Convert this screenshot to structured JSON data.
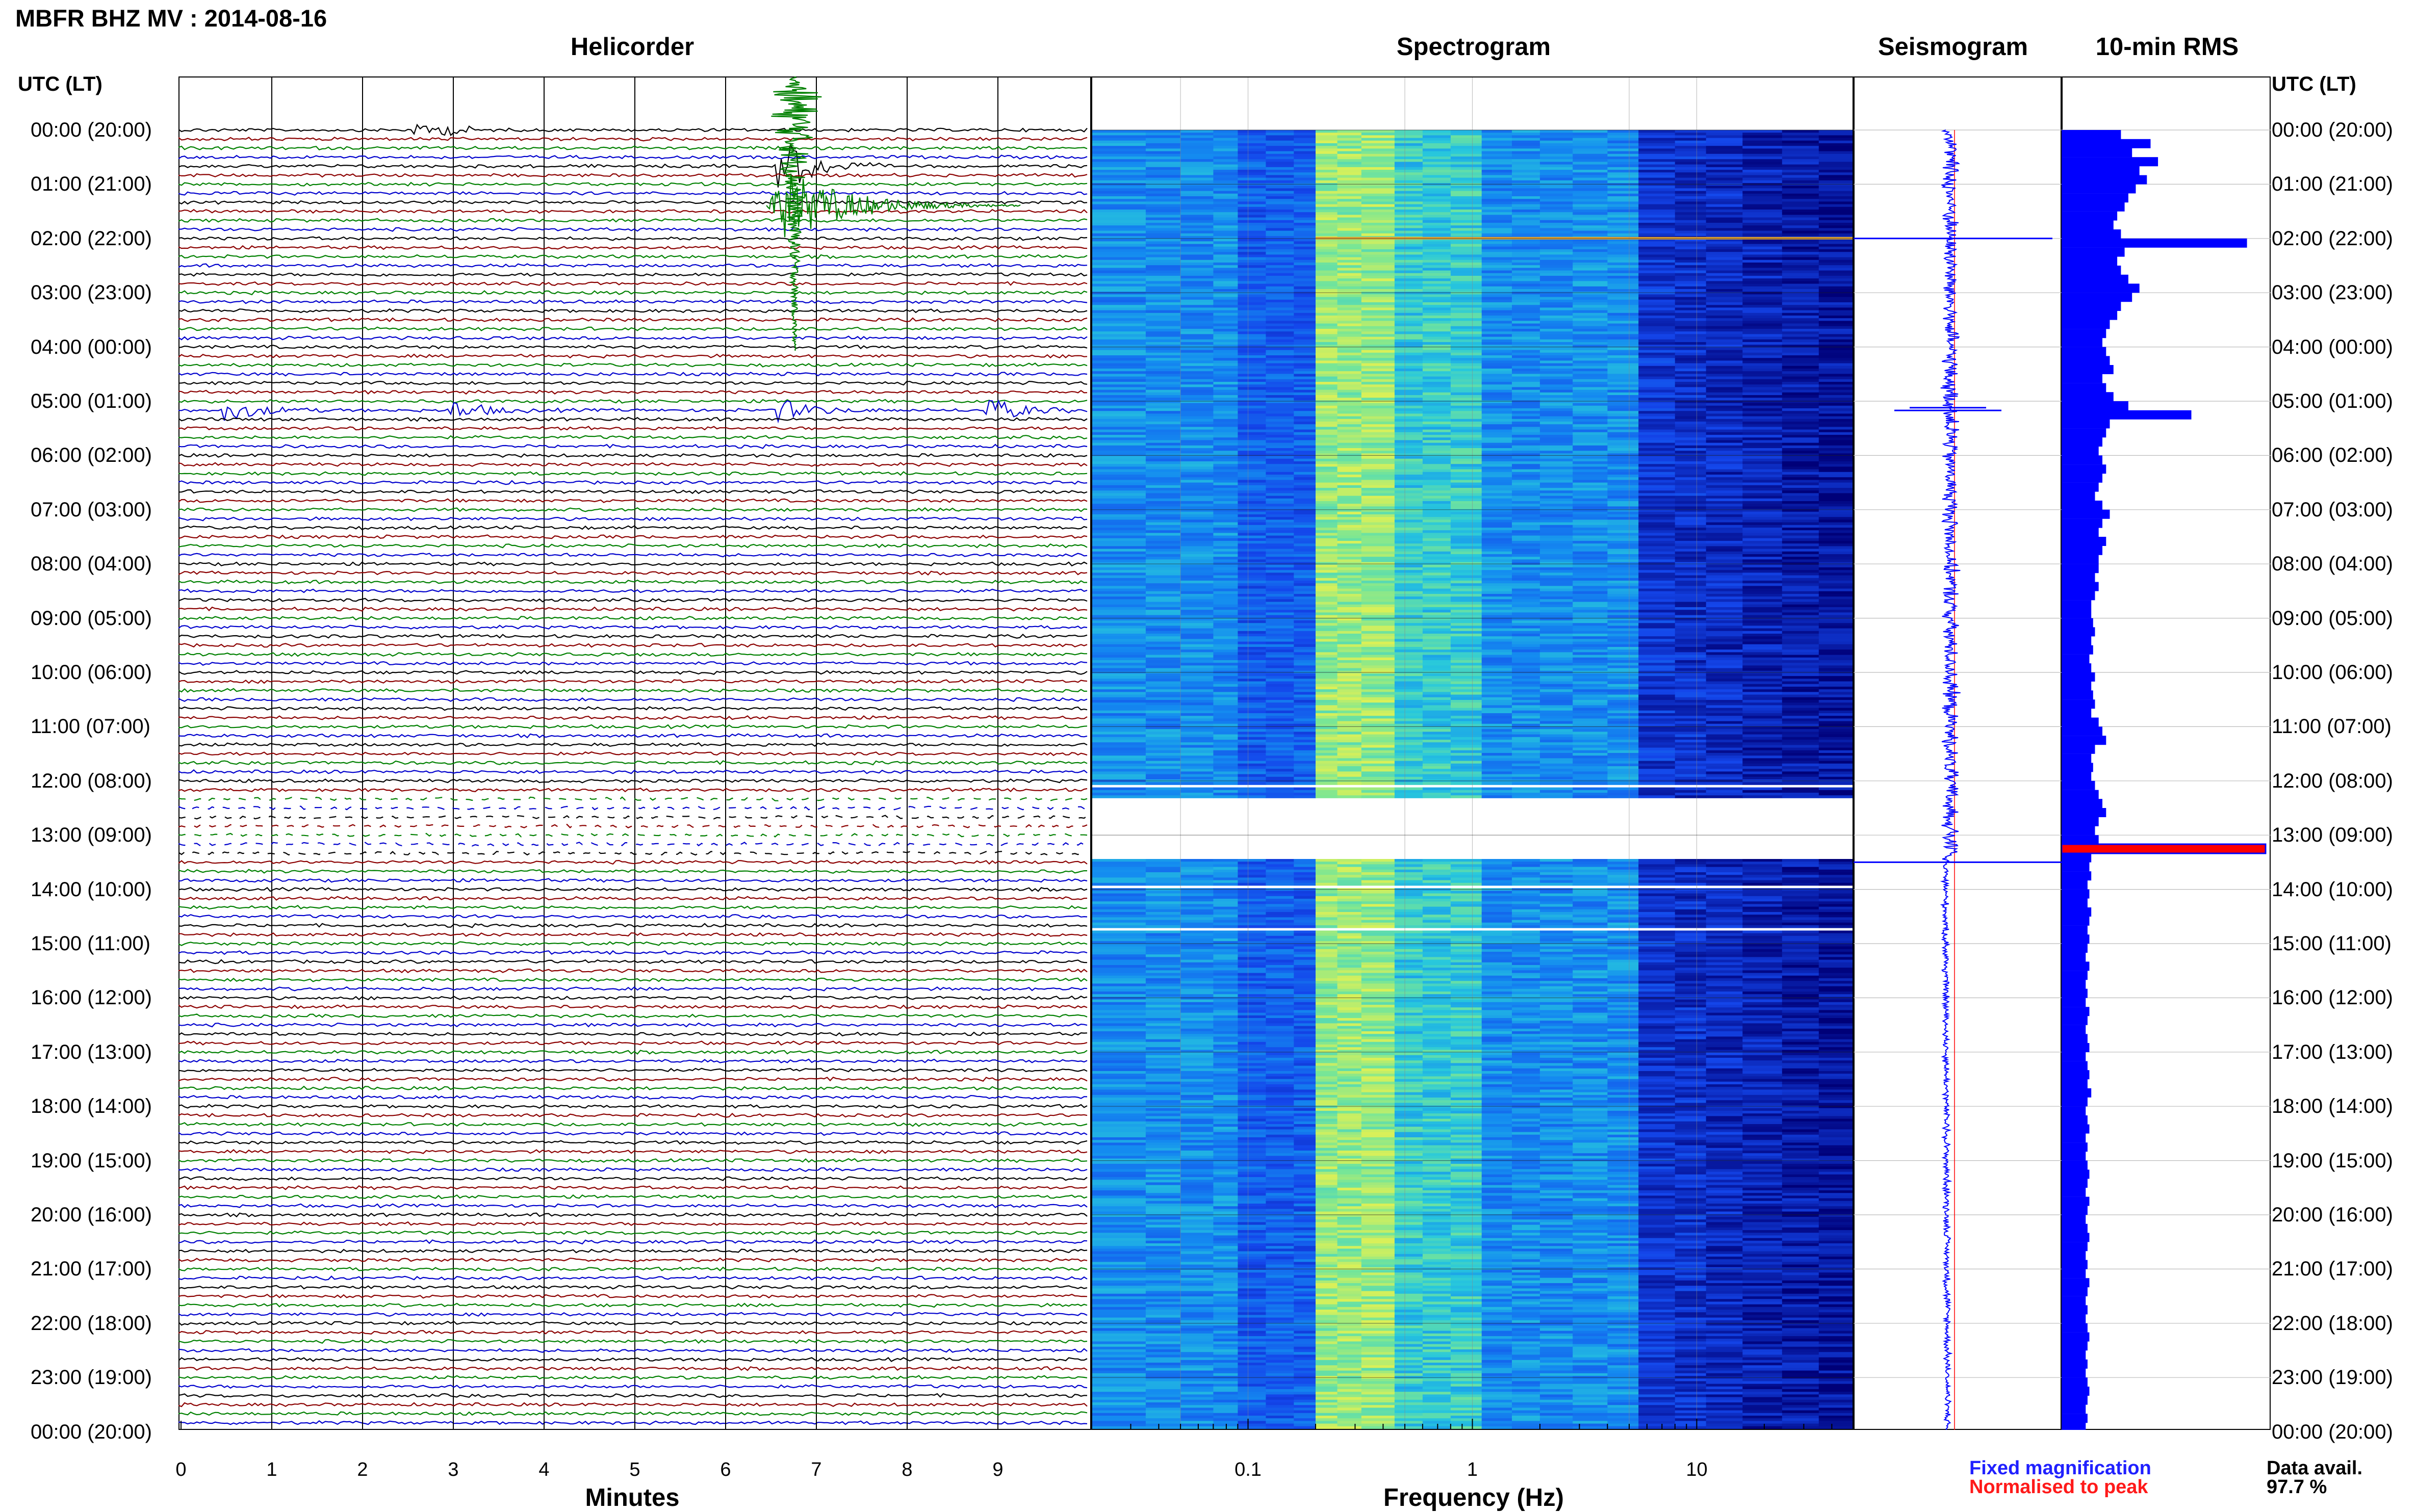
{
  "header": {
    "title": "MBFR BHZ MV : 2014-08-16"
  },
  "panels": {
    "helicorder": "Helicorder",
    "spectrogram": "Spectrogram",
    "seismogram": "Seismogram",
    "rms": "10-min RMS"
  },
  "time_axis": {
    "header_left": "UTC (LT)",
    "header_right": "UTC (LT)",
    "labels": [
      "00:00 (20:00)",
      "01:00 (21:00)",
      "02:00 (22:00)",
      "03:00 (23:00)",
      "04:00 (00:00)",
      "05:00 (01:00)",
      "06:00 (02:00)",
      "07:00 (03:00)",
      "08:00 (04:00)",
      "09:00 (05:00)",
      "10:00 (06:00)",
      "11:00 (07:00)",
      "12:00 (08:00)",
      "13:00 (09:00)",
      "14:00 (10:00)",
      "15:00 (11:00)",
      "16:00 (12:00)",
      "17:00 (13:00)",
      "18:00 (14:00)",
      "19:00 (15:00)",
      "20:00 (16:00)",
      "21:00 (17:00)",
      "22:00 (18:00)",
      "23:00 (19:00)",
      "00:00 (20:00)"
    ]
  },
  "legend": {
    "fixed": "Fixed magnification",
    "normalised": "Normalised to peak"
  },
  "availability": {
    "label": "Data avail.",
    "value": "97.7 %"
  },
  "colors": {
    "trace_cycle": [
      "#000000",
      "#8b0000",
      "#008000",
      "#0000cd"
    ],
    "spectrogram_low": "#00008b",
    "spectrogram_mid": "#1e90ff",
    "spectrogram_high": "#d8f050",
    "rms_bar": "#0000ff",
    "rms_peak": "#ff0000",
    "normalised_line": "#ff0000"
  },
  "chart_data": [
    {
      "type": "line",
      "title": "Helicorder",
      "xlabel": "Minutes",
      "x_ticks": [
        "0",
        "1",
        "2",
        "3",
        "4",
        "5",
        "6",
        "7",
        "8",
        "9"
      ],
      "xlim": [
        0,
        10
      ],
      "rows_per_hour": 6,
      "events": [
        {
          "time": "00:40",
          "minute": 6.6,
          "note": "large green event",
          "relative_amplitude": 1.0
        },
        {
          "time": "05:10",
          "minute": 0.5,
          "note": "spikes",
          "relative_amplitude": 0.35
        },
        {
          "time": "05:10",
          "minute": 3.0,
          "note": "spikes",
          "relative_amplitude": 0.3
        },
        {
          "time": "05:10",
          "minute": 6.6,
          "note": "spikes",
          "relative_amplitude": 0.35
        },
        {
          "time": "05:10",
          "minute": 8.9,
          "note": "spikes",
          "relative_amplitude": 0.4
        }
      ],
      "gaps": [
        "12:10-13:20 (partial)"
      ]
    },
    {
      "type": "heatmap",
      "title": "Spectrogram",
      "xlabel": "Frequency (Hz)",
      "x_scale": "log",
      "x_ticks": [
        "0.1",
        "1",
        "10"
      ],
      "xlim": [
        0.02,
        50
      ],
      "peak_band_hz": [
        0.2,
        0.5
      ],
      "gaps": [
        "12:25-13:20"
      ]
    },
    {
      "type": "line",
      "title": "Seismogram",
      "notes": [
        "spike at 02:00",
        "spike at 05:10",
        "spike at 13:30"
      ]
    },
    {
      "type": "bar",
      "title": "10-min RMS",
      "categories_hours": [
        0,
        0.167,
        0.333,
        0.5,
        0.667,
        0.833,
        1,
        1.167,
        1.333,
        1.5,
        1.667,
        1.833,
        2,
        2.167,
        2.333,
        2.5,
        2.667,
        2.833,
        3,
        3.167,
        3.333,
        3.5,
        3.667,
        3.833,
        4,
        4.167,
        4.333,
        4.5,
        4.667,
        4.833,
        5,
        5.167,
        5.333,
        5.5,
        5.667,
        5.833,
        6,
        6.167,
        6.333,
        6.5,
        6.667,
        6.833,
        7,
        7.167,
        7.333,
        7.5,
        7.667,
        7.833,
        8,
        8.167,
        8.333,
        8.5,
        8.667,
        8.833,
        9,
        9.167,
        9.333,
        9.5,
        9.667,
        9.833,
        10,
        10.167,
        10.333,
        10.5,
        10.667,
        10.833,
        11,
        11.167,
        11.333,
        11.5,
        11.667,
        11.833,
        12,
        12.167,
        12.333,
        12.5,
        12.667,
        12.833,
        13,
        13.167,
        13.333,
        13.5,
        13.667,
        13.833,
        14,
        14.167,
        14.333,
        14.5,
        14.667,
        14.833,
        15,
        15.167,
        15.333,
        15.5,
        15.667,
        15.833,
        16,
        16.167,
        16.333,
        16.5,
        16.667,
        16.833,
        17,
        17.167,
        17.333,
        17.5,
        17.667,
        17.833,
        18,
        18.167,
        18.333,
        18.5,
        18.667,
        18.833,
        19,
        19.167,
        19.333,
        19.5,
        19.667,
        19.833,
        20,
        20.167,
        20.333,
        20.5,
        20.667,
        20.833,
        21,
        21.167,
        21.333,
        21.5,
        21.667,
        21.833,
        22,
        22.167,
        22.333,
        22.5,
        22.667,
        22.833,
        23,
        23.167,
        23.333,
        23.5,
        23.667,
        23.833
      ],
      "values": [
        0.32,
        0.48,
        0.38,
        0.52,
        0.42,
        0.46,
        0.4,
        0.36,
        0.34,
        0.3,
        0.28,
        0.32,
        1.0,
        0.34,
        0.3,
        0.32,
        0.36,
        0.42,
        0.38,
        0.32,
        0.3,
        0.26,
        0.24,
        0.22,
        0.24,
        0.26,
        0.28,
        0.22,
        0.24,
        0.28,
        0.36,
        0.7,
        0.26,
        0.24,
        0.22,
        0.2,
        0.22,
        0.24,
        0.22,
        0.2,
        0.18,
        0.22,
        0.26,
        0.22,
        0.2,
        0.24,
        0.22,
        0.2,
        0.2,
        0.18,
        0.2,
        0.18,
        0.16,
        0.16,
        0.17,
        0.18,
        0.16,
        0.17,
        0.15,
        0.16,
        0.18,
        0.16,
        0.17,
        0.18,
        0.16,
        0.2,
        0.22,
        0.24,
        0.18,
        0.16,
        0.17,
        0.16,
        0.18,
        0.2,
        0.22,
        0.24,
        0.2,
        0.18,
        0.2,
        1.1,
        0.16,
        0.15,
        0.16,
        0.14,
        0.15,
        0.14,
        0.16,
        0.15,
        0.14,
        0.15,
        0.14,
        0.13,
        0.15,
        0.14,
        0.13,
        0.14,
        0.13,
        0.15,
        0.14,
        0.13,
        0.14,
        0.15,
        0.13,
        0.14,
        0.15,
        0.14,
        0.16,
        0.14,
        0.13,
        0.14,
        0.15,
        0.13,
        0.14,
        0.13,
        0.14,
        0.15,
        0.14,
        0.13,
        0.15,
        0.14,
        0.13,
        0.14,
        0.15,
        0.14,
        0.13,
        0.14,
        0.13,
        0.15,
        0.14,
        0.13,
        0.14,
        0.13,
        0.14,
        0.15,
        0.14,
        0.13,
        0.14,
        0.13,
        0.14,
        0.15,
        0.14,
        0.13,
        0.14,
        0.13
      ],
      "peak_index": 79
    }
  ]
}
